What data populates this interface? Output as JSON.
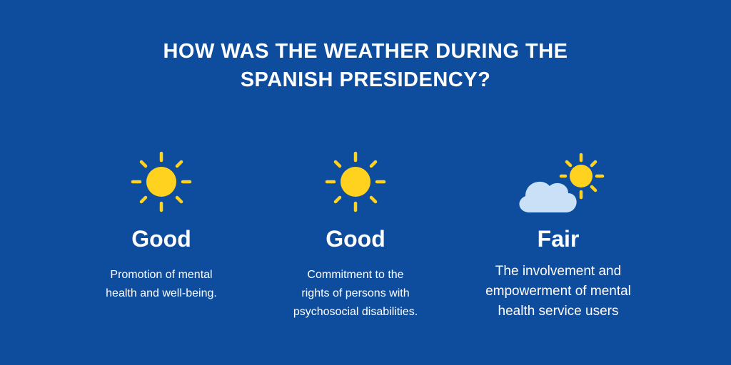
{
  "title": {
    "line1": "HOW WAS THE WEATHER DURING THE",
    "line2": "SPANISH PRESIDENCY?"
  },
  "colors": {
    "background": "#0e4c9e",
    "text": "#ffffff",
    "sun": "#ffd21f",
    "cloud": "#c9e0f7"
  },
  "items": [
    {
      "icon": "sun-icon",
      "rating": "Good",
      "description": [
        "Promotion of mental",
        "health and well-being."
      ]
    },
    {
      "icon": "sun-icon",
      "rating": "Good",
      "description": [
        "Commitment to the",
        "rights of persons with",
        "psychosocial disabilities."
      ]
    },
    {
      "icon": "partly-cloudy-icon",
      "rating": "Fair",
      "description": [
        "The involvement and",
        "empowerment of mental",
        "health service users"
      ]
    }
  ]
}
